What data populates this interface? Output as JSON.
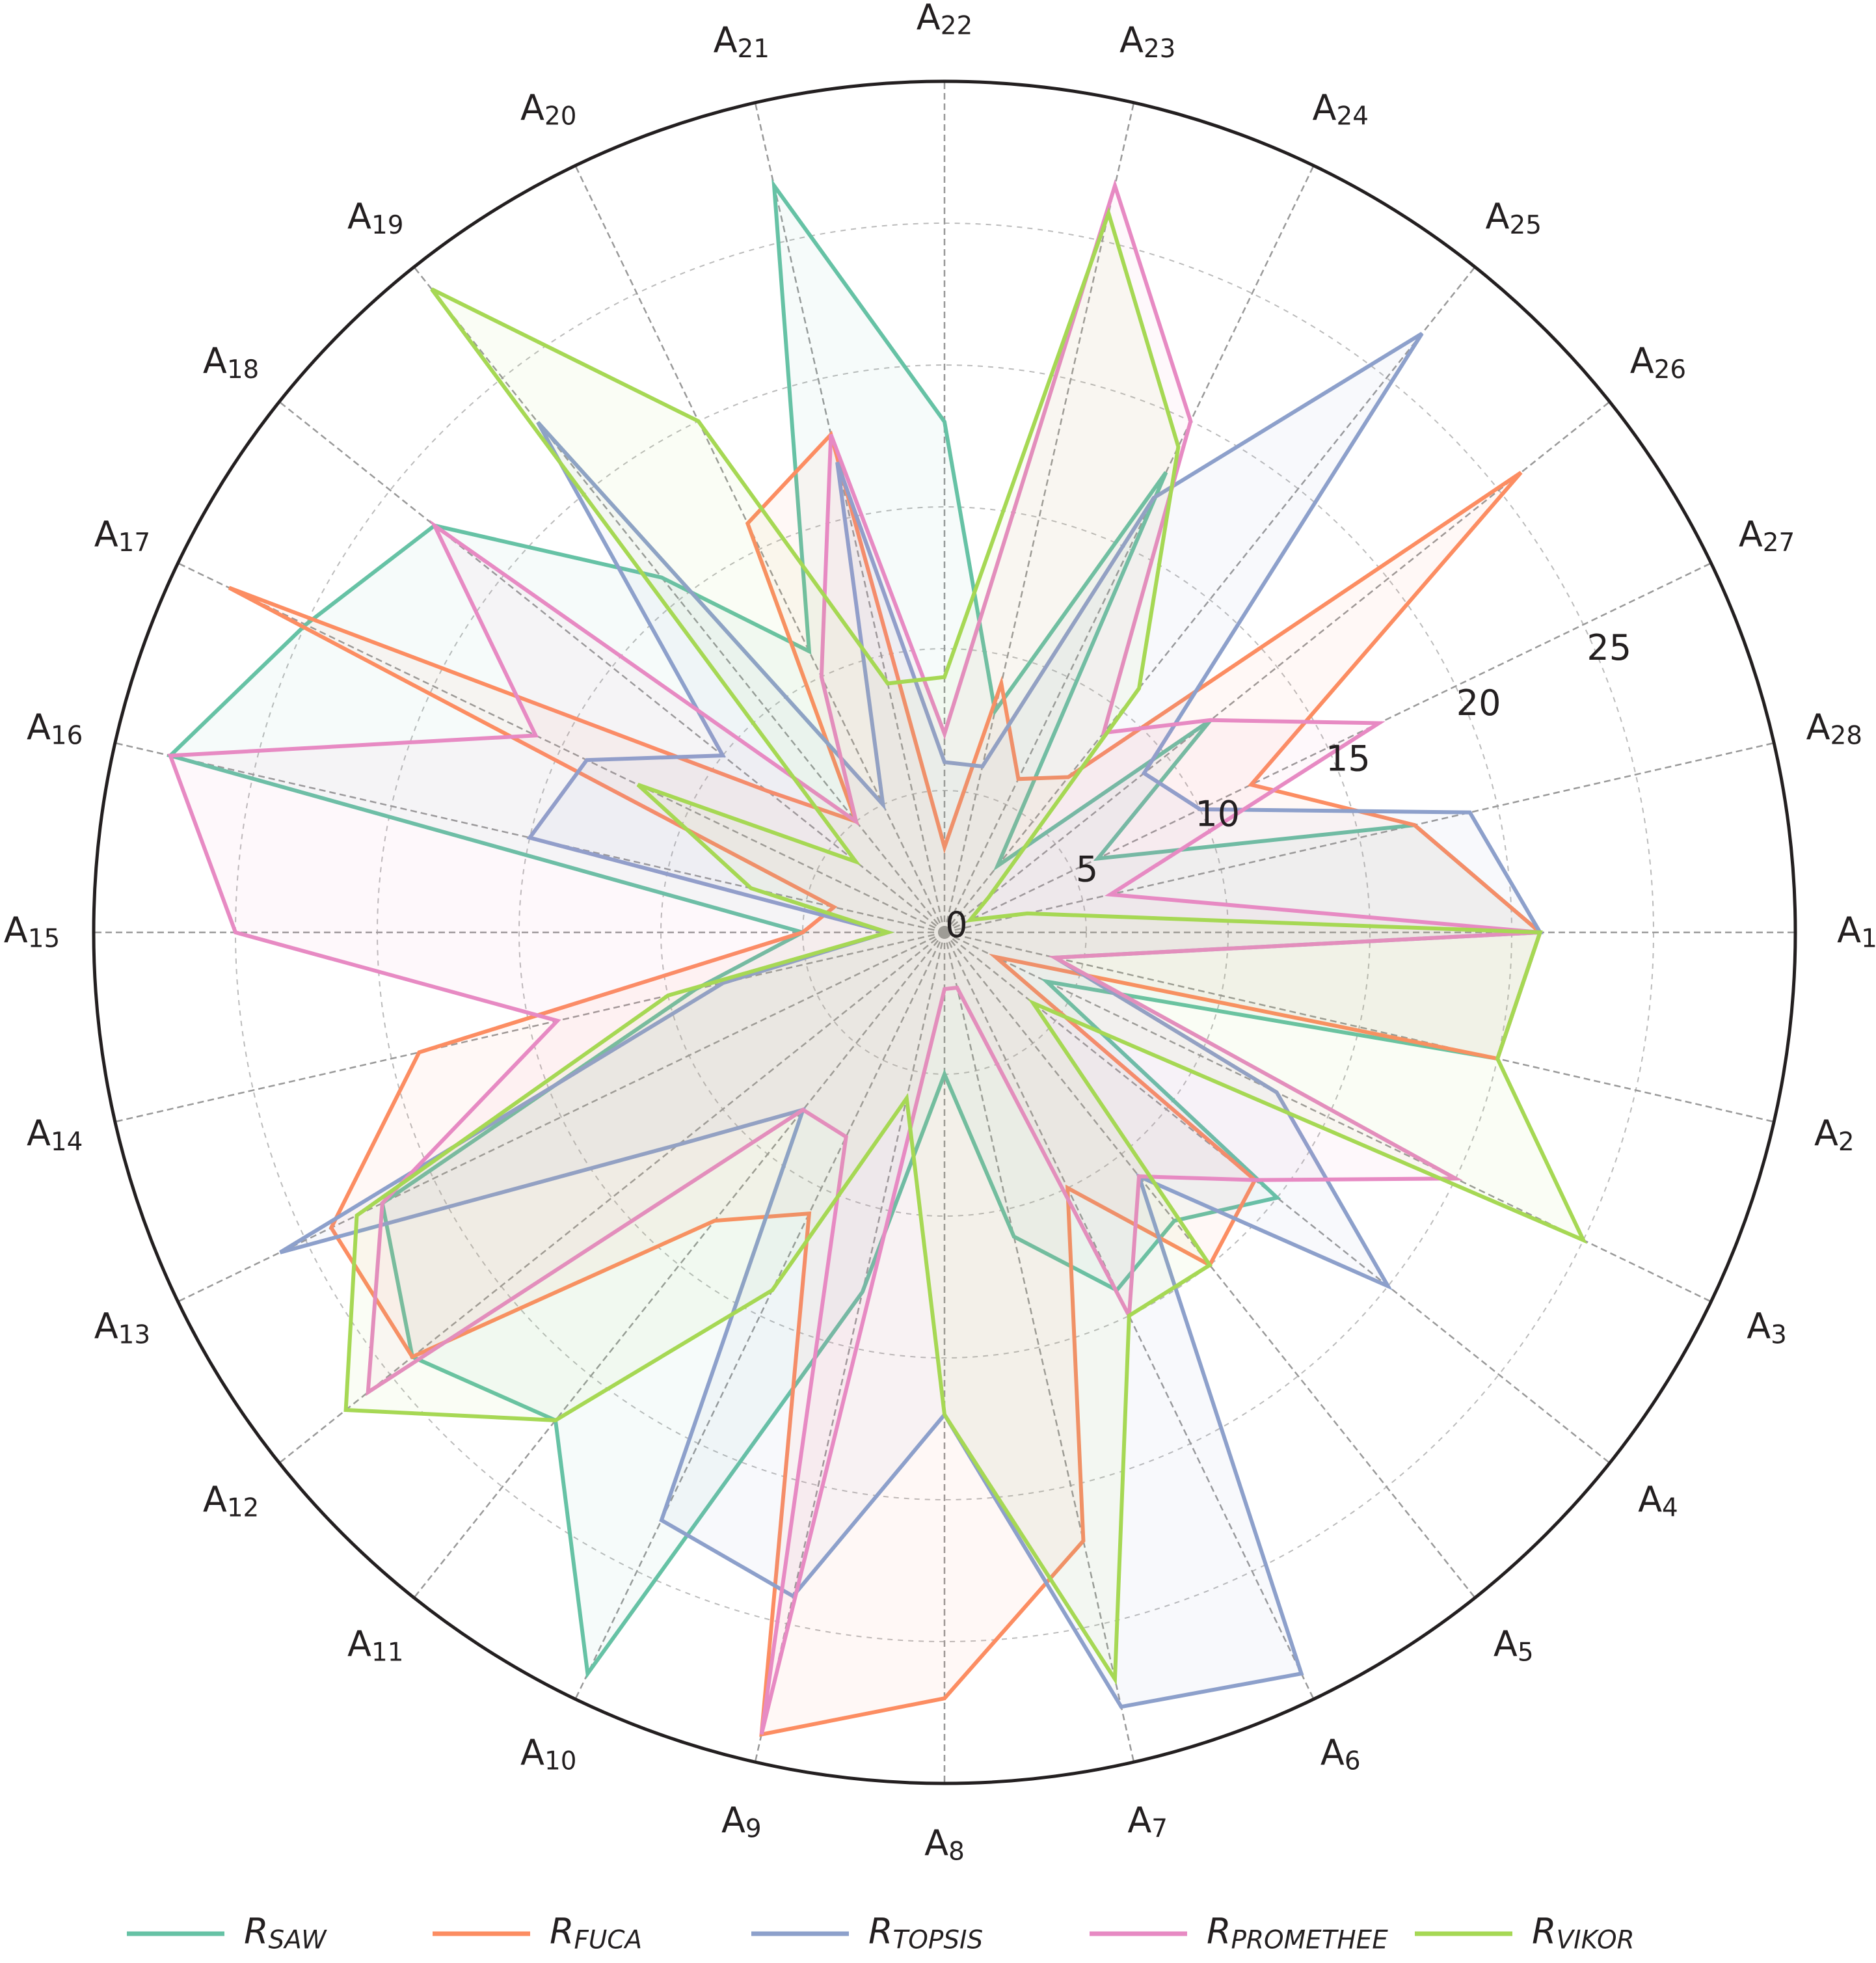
{
  "chart_data": {
    "type": "radar",
    "categories": [
      "A1",
      "A2",
      "A3",
      "A4",
      "A5",
      "A6",
      "A7",
      "A8",
      "A9",
      "A10",
      "A11",
      "A12",
      "A13",
      "A14",
      "A15",
      "A16",
      "A17",
      "A18",
      "A19",
      "A20",
      "A21",
      "A22",
      "A23",
      "A24",
      "A25",
      "A26",
      "A27",
      "A28"
    ],
    "ylim": [
      0,
      30
    ],
    "yticks": [
      0,
      5,
      10,
      15,
      20,
      25
    ],
    "grid": true,
    "legend": "bottom",
    "series": [
      {
        "name": "RSAW",
        "color": "#66c2a5",
        "values": [
          21,
          20,
          4,
          15,
          13,
          14,
          11,
          5,
          13,
          29,
          22,
          24,
          22,
          9,
          5,
          28,
          25,
          23,
          16,
          11,
          27,
          18,
          8,
          18,
          3,
          12,
          6,
          17
        ]
      },
      {
        "name": "RFUCA",
        "color": "#fc8d62",
        "values": [
          21,
          20,
          2,
          14,
          15,
          10,
          22,
          27,
          29,
          11,
          13,
          24,
          24,
          19,
          5,
          4,
          28,
          8,
          5,
          16,
          18,
          3,
          9,
          6,
          7,
          26,
          12,
          17
        ]
      },
      {
        "name": "RTOPSIS",
        "color": "#8da0cb",
        "values": [
          21,
          4,
          13,
          20,
          11,
          29,
          28,
          17,
          24,
          23,
          8,
          12,
          26,
          8,
          2,
          15,
          14,
          10,
          23,
          5,
          17,
          6,
          6,
          17,
          27,
          9,
          10,
          19
        ]
      },
      {
        "name": "RPROMETHEE",
        "color": "#e78ac3",
        "values": [
          21,
          4,
          20,
          14,
          11,
          15,
          2,
          2,
          29,
          8,
          8,
          26,
          22,
          14,
          25,
          28,
          16,
          23,
          5,
          10,
          18,
          7,
          27,
          20,
          9,
          12,
          17,
          6
        ]
      },
      {
        "name": "RVIKOR",
        "color": "#a6d854",
        "values": [
          21,
          20,
          25,
          4,
          15,
          15,
          27,
          17,
          6,
          14,
          22,
          27,
          23,
          10,
          2,
          7,
          12,
          4,
          29,
          20,
          9,
          9,
          26,
          19,
          11,
          2,
          1,
          3
        ]
      }
    ]
  }
}
